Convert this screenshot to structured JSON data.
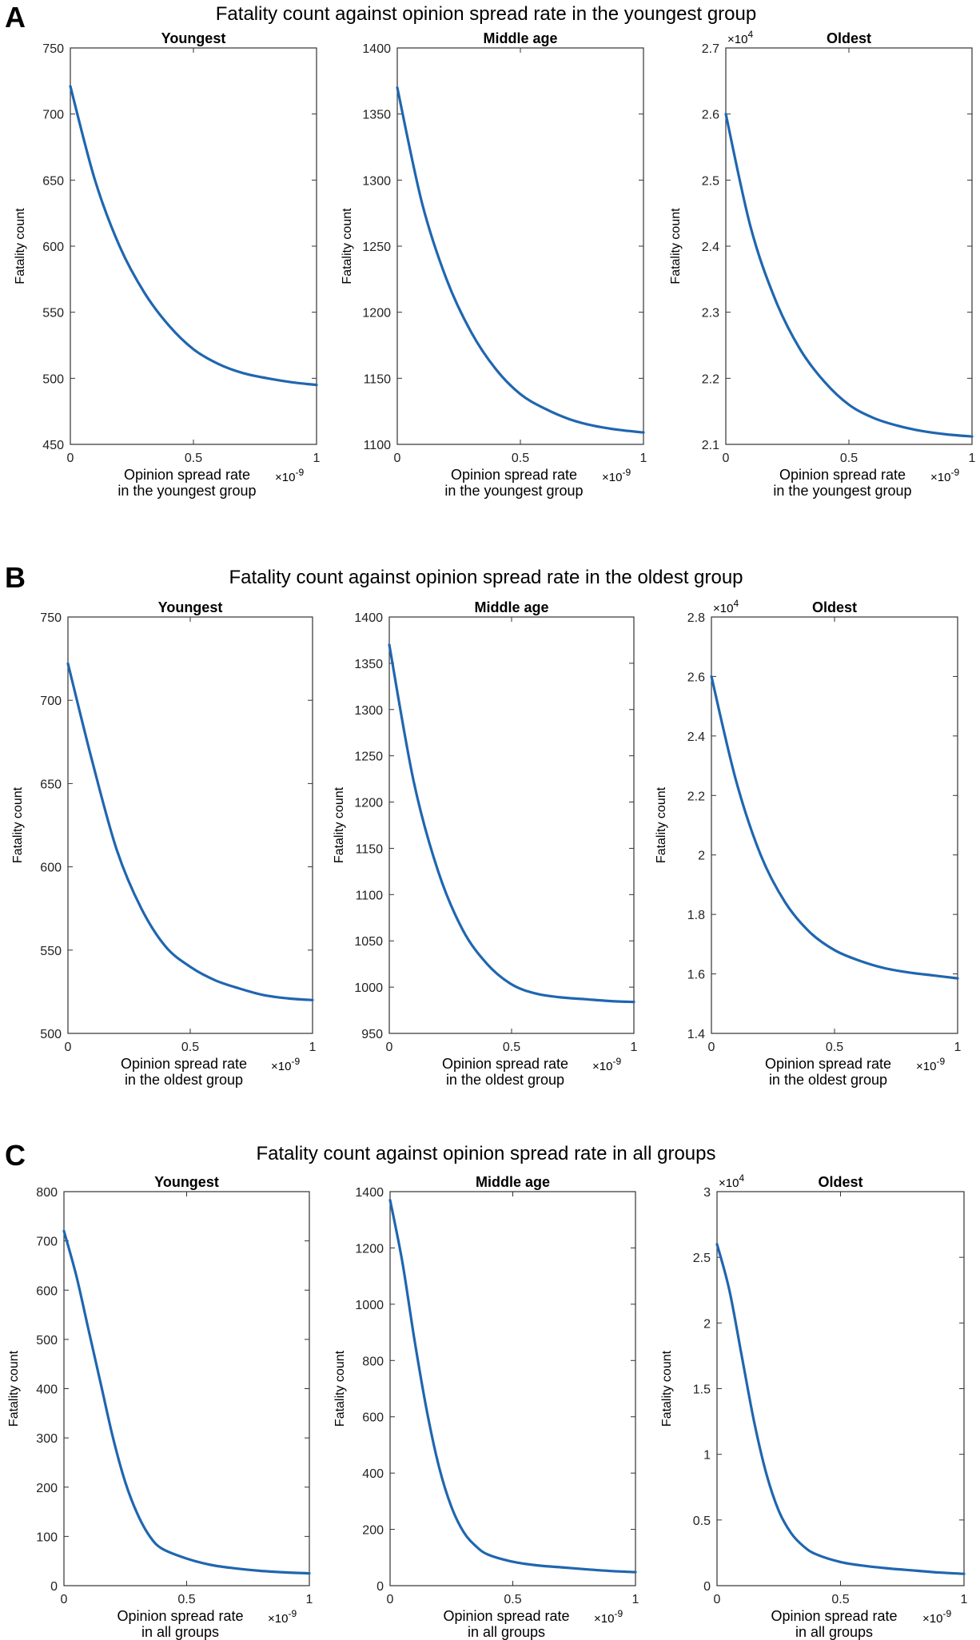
{
  "panels": [
    {
      "letter": "A",
      "title": "Fatality count against opinion spread rate in the youngest group",
      "chart_data": [
        {
          "type": "line",
          "title": "Youngest",
          "ylabel": "Fatality count",
          "xlabel_line1": "Opinion spread rate",
          "xlabel_line2": "in the youngest group",
          "x_multiplier": "×10",
          "x_exponent": "-9",
          "y_multiplier": "",
          "y_exponent": "",
          "xlim": [
            0,
            1
          ],
          "ylim": [
            450,
            750
          ],
          "xticks": [
            0,
            0.5,
            1
          ],
          "xtick_labels": [
            "0",
            "0.5",
            "1"
          ],
          "yticks": [
            450,
            500,
            550,
            600,
            650,
            700,
            750
          ],
          "ytick_labels": [
            "450",
            "500",
            "550",
            "600",
            "650",
            "700",
            "750"
          ],
          "x": [
            0,
            0.1,
            0.2,
            0.3,
            0.4,
            0.5,
            0.6,
            0.7,
            0.8,
            0.9,
            1.0
          ],
          "y": [
            721,
            650,
            600,
            565,
            540,
            522,
            511,
            504,
            500,
            497,
            495
          ]
        },
        {
          "type": "line",
          "title": "Middle age",
          "ylabel": "Fatality count",
          "xlabel_line1": "Opinion spread rate",
          "xlabel_line2": "in the youngest group",
          "x_multiplier": "×10",
          "x_exponent": "-9",
          "y_multiplier": "",
          "y_exponent": "",
          "xlim": [
            0,
            1
          ],
          "ylim": [
            1100,
            1400
          ],
          "xticks": [
            0,
            0.5,
            1
          ],
          "xtick_labels": [
            "0",
            "0.5",
            "1"
          ],
          "yticks": [
            1100,
            1150,
            1200,
            1250,
            1300,
            1350,
            1400
          ],
          "ytick_labels": [
            "1100",
            "1150",
            "1200",
            "1250",
            "1300",
            "1350",
            "1400"
          ],
          "x": [
            0,
            0.1,
            0.2,
            0.3,
            0.4,
            0.5,
            0.6,
            0.7,
            0.8,
            0.9,
            1.0
          ],
          "y": [
            1370,
            1283,
            1225,
            1185,
            1157,
            1138,
            1127,
            1119,
            1114,
            1111,
            1109
          ]
        },
        {
          "type": "line",
          "title": "Oldest",
          "ylabel": "Fatality count",
          "xlabel_line1": "Opinion spread rate",
          "xlabel_line2": "in the youngest group",
          "x_multiplier": "×10",
          "x_exponent": "-9",
          "y_multiplier": "×10",
          "y_exponent": "4",
          "xlim": [
            0,
            1
          ],
          "ylim": [
            2.1,
            2.7
          ],
          "xticks": [
            0,
            0.5,
            1
          ],
          "xtick_labels": [
            "0",
            "0.5",
            "1"
          ],
          "yticks": [
            2.1,
            2.2,
            2.3,
            2.4,
            2.5,
            2.6,
            2.7
          ],
          "ytick_labels": [
            "2.1",
            "2.2",
            "2.3",
            "2.4",
            "2.5",
            "2.6",
            "2.7"
          ],
          "x": [
            0,
            0.1,
            0.2,
            0.3,
            0.4,
            0.5,
            0.6,
            0.7,
            0.8,
            0.9,
            1.0
          ],
          "y": [
            2.6,
            2.43,
            2.32,
            2.245,
            2.195,
            2.16,
            2.14,
            2.128,
            2.12,
            2.115,
            2.112
          ]
        }
      ]
    },
    {
      "letter": "B",
      "title": "Fatality count against opinion spread rate in the oldest group",
      "chart_data": [
        {
          "type": "line",
          "title": "Youngest",
          "ylabel": "Fatality count",
          "xlabel_line1": "Opinion spread rate",
          "xlabel_line2": "in the oldest group",
          "x_multiplier": "×10",
          "x_exponent": "-9",
          "y_multiplier": "",
          "y_exponent": "",
          "xlim": [
            0,
            1
          ],
          "ylim": [
            500,
            750
          ],
          "xticks": [
            0,
            0.5,
            1
          ],
          "xtick_labels": [
            "0",
            "0.5",
            "1"
          ],
          "yticks": [
            500,
            550,
            600,
            650,
            700,
            750
          ],
          "ytick_labels": [
            "500",
            "550",
            "600",
            "650",
            "700",
            "750"
          ],
          "x": [
            0,
            0.1,
            0.2,
            0.3,
            0.4,
            0.5,
            0.6,
            0.7,
            0.8,
            0.9,
            1.0
          ],
          "y": [
            722,
            663,
            610,
            575,
            552,
            540,
            532,
            527,
            523,
            521,
            520
          ]
        },
        {
          "type": "line",
          "title": "Middle age",
          "ylabel": "Fatality count",
          "xlabel_line1": "Opinion spread rate",
          "xlabel_line2": "in the oldest group",
          "x_multiplier": "×10",
          "x_exponent": "-9",
          "y_multiplier": "",
          "y_exponent": "",
          "xlim": [
            0,
            1
          ],
          "ylim": [
            950,
            1400
          ],
          "xticks": [
            0,
            0.5,
            1
          ],
          "xtick_labels": [
            "0",
            "0.5",
            "1"
          ],
          "yticks": [
            950,
            1000,
            1050,
            1100,
            1150,
            1200,
            1250,
            1300,
            1350,
            1400
          ],
          "ytick_labels": [
            "950",
            "1000",
            "1050",
            "1100",
            "1150",
            "1200",
            "1250",
            "1300",
            "1350",
            "1400"
          ],
          "x": [
            0,
            0.1,
            0.2,
            0.3,
            0.4,
            0.5,
            0.6,
            0.7,
            0.8,
            0.9,
            1.0
          ],
          "y": [
            1370,
            1222,
            1125,
            1062,
            1025,
            1003,
            993,
            989,
            987,
            985,
            984
          ]
        },
        {
          "type": "line",
          "title": "Oldest",
          "ylabel": "Fatality count",
          "xlabel_line1": "Opinion spread rate",
          "xlabel_line2": "in the oldest group",
          "x_multiplier": "×10",
          "x_exponent": "-9",
          "y_multiplier": "×10",
          "y_exponent": "4",
          "xlim": [
            0,
            1
          ],
          "ylim": [
            1.4,
            2.8
          ],
          "xticks": [
            0,
            0.5,
            1
          ],
          "xtick_labels": [
            "0",
            "0.5",
            "1"
          ],
          "yticks": [
            1.4,
            1.6,
            1.8,
            2.0,
            2.2,
            2.4,
            2.6,
            2.8
          ],
          "ytick_labels": [
            "1.4",
            "1.6",
            "1.8",
            "2",
            "2.2",
            "2.4",
            "2.6",
            "2.8"
          ],
          "x": [
            0,
            0.1,
            0.2,
            0.3,
            0.4,
            0.5,
            0.6,
            0.7,
            0.8,
            0.9,
            1.0
          ],
          "y": [
            2.6,
            2.25,
            2.0,
            1.84,
            1.74,
            1.68,
            1.645,
            1.62,
            1.605,
            1.595,
            1.585
          ]
        }
      ]
    },
    {
      "letter": "C",
      "title": "Fatality count against opinion spread rate in all groups",
      "chart_data": [
        {
          "type": "line",
          "title": "Youngest",
          "ylabel": "Fatality count",
          "xlabel_line1": "Opinion spread rate",
          "xlabel_line2": "in all groups",
          "x_multiplier": "×10",
          "x_exponent": "-9",
          "y_multiplier": "",
          "y_exponent": "",
          "xlim": [
            0,
            1
          ],
          "ylim": [
            0,
            800
          ],
          "xticks": [
            0,
            0.5,
            1
          ],
          "xtick_labels": [
            "0",
            "0.5",
            "1"
          ],
          "yticks": [
            0,
            100,
            200,
            300,
            400,
            500,
            600,
            700,
            800
          ],
          "ytick_labels": [
            "0",
            "100",
            "200",
            "300",
            "400",
            "500",
            "600",
            "700",
            "800"
          ],
          "x": [
            0,
            0.05,
            0.1,
            0.15,
            0.2,
            0.25,
            0.3,
            0.35,
            0.4,
            0.5,
            0.6,
            0.7,
            0.8,
            0.9,
            1.0
          ],
          "y": [
            720,
            630,
            520,
            410,
            300,
            210,
            145,
            100,
            75,
            55,
            42,
            35,
            30,
            27,
            25
          ]
        },
        {
          "type": "line",
          "title": "Middle age",
          "ylabel": "Fatality count",
          "xlabel_line1": "Opinion spread rate",
          "xlabel_line2": "in all groups",
          "x_multiplier": "×10",
          "x_exponent": "-9",
          "y_multiplier": "",
          "y_exponent": "",
          "xlim": [
            0,
            1
          ],
          "ylim": [
            0,
            1400
          ],
          "xticks": [
            0,
            0.5,
            1
          ],
          "xtick_labels": [
            "0",
            "0.5",
            "1"
          ],
          "yticks": [
            0,
            200,
            400,
            600,
            800,
            1000,
            1200,
            1400
          ],
          "ytick_labels": [
            "0",
            "200",
            "400",
            "600",
            "800",
            "1000",
            "1200",
            "1400"
          ],
          "x": [
            0,
            0.05,
            0.1,
            0.15,
            0.2,
            0.25,
            0.3,
            0.35,
            0.4,
            0.5,
            0.6,
            0.7,
            0.8,
            0.9,
            1.0
          ],
          "y": [
            1370,
            1150,
            870,
            620,
            420,
            280,
            190,
            140,
            110,
            85,
            72,
            65,
            58,
            52,
            48
          ]
        },
        {
          "type": "line",
          "title": "Oldest",
          "ylabel": "Fatality count",
          "xlabel_line1": "Opinion spread rate",
          "xlabel_line2": "in all groups",
          "x_multiplier": "×10",
          "x_exponent": "-9",
          "y_multiplier": "×10",
          "y_exponent": "4",
          "xlim": [
            0,
            1
          ],
          "ylim": [
            0,
            3
          ],
          "xticks": [
            0,
            0.5,
            1
          ],
          "xtick_labels": [
            "0",
            "0.5",
            "1"
          ],
          "yticks": [
            0,
            0.5,
            1,
            1.5,
            2,
            2.5,
            3
          ],
          "ytick_labels": [
            "0",
            "0.5",
            "1",
            "1.5",
            "2",
            "2.5",
            "3"
          ],
          "x": [
            0,
            0.05,
            0.1,
            0.15,
            0.2,
            0.25,
            0.3,
            0.35,
            0.4,
            0.5,
            0.6,
            0.7,
            0.8,
            0.9,
            1.0
          ],
          "y": [
            2.6,
            2.25,
            1.75,
            1.25,
            0.85,
            0.57,
            0.4,
            0.3,
            0.24,
            0.18,
            0.15,
            0.13,
            0.115,
            0.1,
            0.09
          ]
        }
      ]
    }
  ],
  "colors": {
    "curve": "#1f66b0",
    "axis": "#333333",
    "background": "#ffffff"
  }
}
